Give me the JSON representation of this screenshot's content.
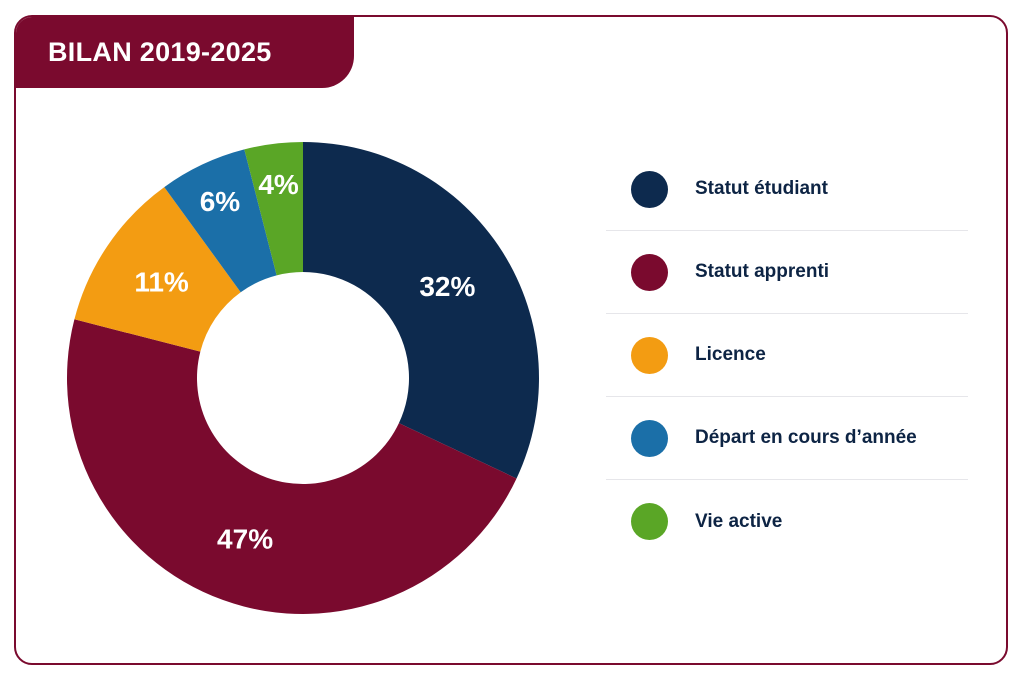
{
  "header": {
    "title": "BILAN 2019-2025"
  },
  "colors": {
    "accent": "#7a0a2e",
    "text": "#0d2444"
  },
  "chart_data": {
    "type": "pie",
    "title": "BILAN 2019-2025",
    "legend_position": "right",
    "unit": "%",
    "categories": [
      "Statut étudiant",
      "Statut apprenti",
      "Licence",
      "Départ en cours d’année",
      "Vie active"
    ],
    "values": [
      32,
      47,
      11,
      6,
      4
    ],
    "value_labels": [
      "32%",
      "47%",
      "11%",
      "6%",
      "4%"
    ],
    "colors": [
      "#0d2a4e",
      "#7a0a2e",
      "#f39c12",
      "#1b6fa8",
      "#5aa626"
    ]
  }
}
